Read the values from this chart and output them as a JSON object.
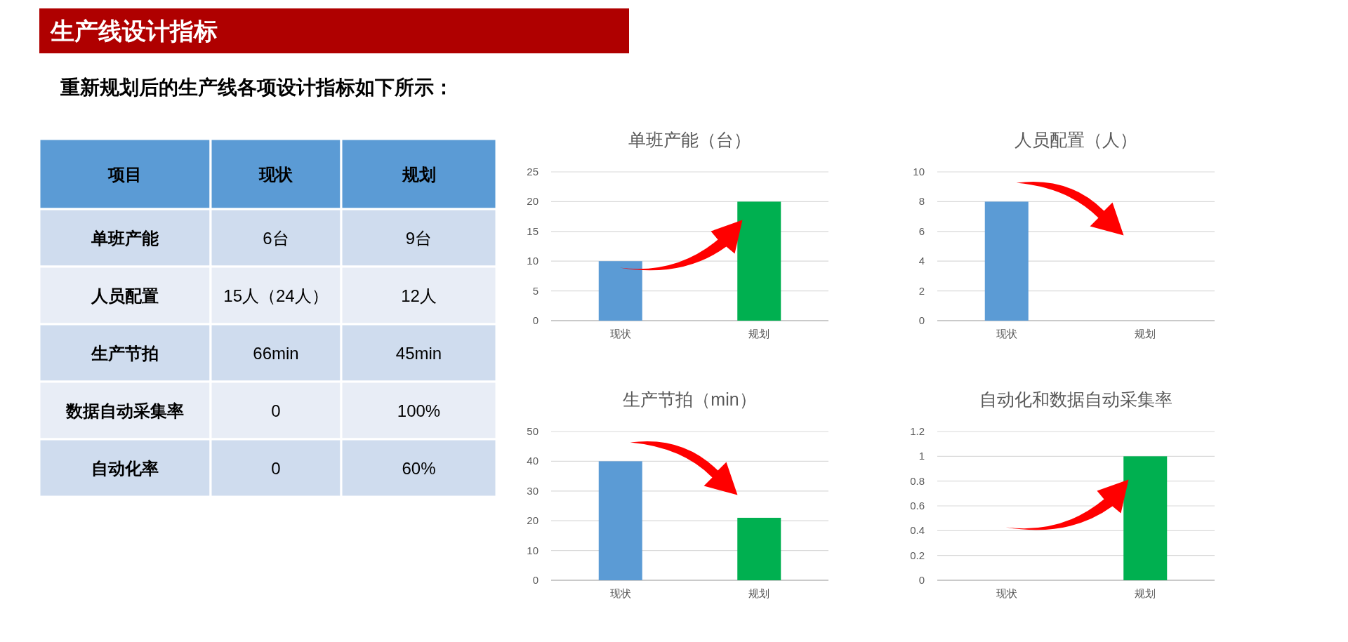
{
  "chart_data": [
    {
      "type": "other",
      "title": "生产线设计指标",
      "subtitle": "重新规划后的生产线各项设计指标如下所示：",
      "annotations": [
        "项目",
        "现状",
        "规划",
        "单班产能",
        "6台",
        "9台",
        "人员配置",
        "15人（24人）",
        "12人",
        "生产节拍",
        "66min",
        "45min",
        "数据自动采集率",
        "0",
        "100%",
        "自动化率",
        "0",
        "60%"
      ]
    },
    {
      "type": "bar",
      "title": "单班产能（台）",
      "categories": [
        "现状",
        "规划"
      ],
      "values": [
        10,
        20
      ],
      "colors": [
        "#5b9bd5",
        "#00b050"
      ],
      "ylim": [
        0,
        25
      ],
      "yticks": [
        0,
        5,
        10,
        15,
        20,
        25
      ],
      "grid": "y"
    },
    {
      "type": "bar",
      "title": "人员配置（人）",
      "categories": [
        "现状",
        "规划"
      ],
      "values": [
        8,
        0
      ],
      "colors": [
        "#5b9bd5",
        "#00b050"
      ],
      "ylim": [
        0,
        10
      ],
      "yticks": [
        0,
        2,
        4,
        6,
        8,
        10
      ],
      "grid": "y"
    },
    {
      "type": "bar",
      "title": "生产节拍（min）",
      "categories": [
        "现状",
        "规划"
      ],
      "values": [
        40,
        21
      ],
      "colors": [
        "#5b9bd5",
        "#00b050"
      ],
      "ylim": [
        0,
        50
      ],
      "yticks": [
        0,
        10,
        20,
        30,
        40,
        50
      ],
      "grid": "y"
    },
    {
      "type": "bar",
      "title": "自动化和数据自动采集率",
      "categories": [
        "现状",
        "规划"
      ],
      "values": [
        0,
        1
      ],
      "colors": [
        "#5b9bd5",
        "#00b050"
      ],
      "ylim": [
        0,
        1.2
      ],
      "yticks": [
        0,
        0.2,
        0.4,
        0.6,
        0.8,
        1,
        1.2
      ],
      "grid": "y"
    }
  ]
}
